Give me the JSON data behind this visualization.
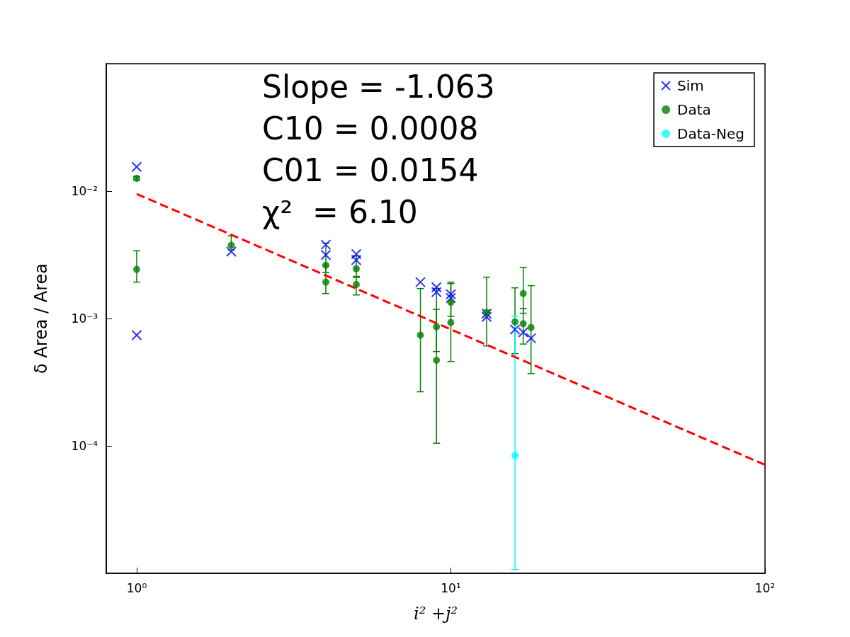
{
  "chart_data": {
    "type": "scatter",
    "xlabel": "i² +j²",
    "ylabel": "δ Area / Area",
    "log": "xy",
    "grid": false,
    "legend": "top right",
    "xlim": [
      0.8,
      100
    ],
    "ylim": [
      1e-05,
      0.1
    ],
    "xticks": [
      {
        "value": 1,
        "label": "10⁰"
      },
      {
        "value": 10,
        "label": "10¹"
      },
      {
        "value": 100,
        "label": "10²"
      }
    ],
    "yticks": [
      {
        "value": 0.0001,
        "label": "10⁻⁴"
      },
      {
        "value": 0.001,
        "label": "10⁻³"
      },
      {
        "value": 0.01,
        "label": "10⁻²"
      }
    ],
    "annotations": [
      "Slope = -1.063",
      "C10 = 0.0008",
      "C01 = 0.0154",
      "χ²  = 6.10"
    ],
    "series": [
      {
        "name": "Sim",
        "marker": "cross",
        "color": "#0000ff",
        "x": [
          1,
          1,
          2,
          4,
          4,
          5,
          5,
          8,
          9,
          9,
          10,
          10,
          13,
          13,
          16,
          17,
          18
        ],
        "values": [
          0.0155,
          0.00074,
          0.00335,
          0.0038,
          0.00315,
          0.0032,
          0.00287,
          0.00193,
          0.00176,
          0.00161,
          0.00155,
          0.00145,
          0.00109,
          0.00103,
          0.00082,
          0.00078,
          0.0007
        ]
      },
      {
        "name": "Data",
        "marker": "circle",
        "color": "#008000",
        "x": [
          1,
          1,
          2,
          4,
          4,
          5,
          5,
          8,
          9,
          9,
          10,
          10,
          13,
          16,
          17,
          17,
          18
        ],
        "values": [
          0.0126,
          0.00243,
          0.00376,
          0.00262,
          0.00193,
          0.00246,
          0.00185,
          0.00074,
          0.00086,
          0.00047,
          0.00134,
          0.00093,
          0.00112,
          0.00094,
          0.00157,
          0.00091,
          0.00085
        ],
        "errors": [
          [
            0.0122,
            0.013
          ],
          [
            0.00193,
            0.0034
          ],
          [
            0.00344,
            0.00445
          ],
          [
            0.0023,
            0.0039
          ],
          [
            0.00157,
            0.0026
          ],
          [
            0.0021,
            0.0031
          ],
          [
            0.00153,
            0.00214
          ],
          [
            0.000266,
            0.00172
          ],
          [
            0.00055,
            0.00172
          ],
          [
            0.000105,
            0.00118
          ],
          [
            0.00104,
            0.00193
          ],
          [
            0.00046,
            0.00188
          ],
          [
            0.00061,
            0.00211
          ],
          [
            0.00053,
            0.00174
          ],
          [
            0.0011,
            0.00252
          ],
          [
            0.00063,
            0.0012
          ],
          [
            0.00037,
            0.00181
          ]
        ]
      },
      {
        "name": "Data-Neg",
        "marker": "circle",
        "color": "#00ffff",
        "x": [
          16
        ],
        "values": [
          8.4e-05
        ],
        "errors": [
          [
            1.07e-05,
            0.00104
          ]
        ]
      },
      {
        "type": "line",
        "marker": "none",
        "line_style": "dashed",
        "color": "#ff0000",
        "x": [
          1,
          100
        ],
        "values": [
          0.0095,
          7.1e-05
        ]
      }
    ]
  }
}
